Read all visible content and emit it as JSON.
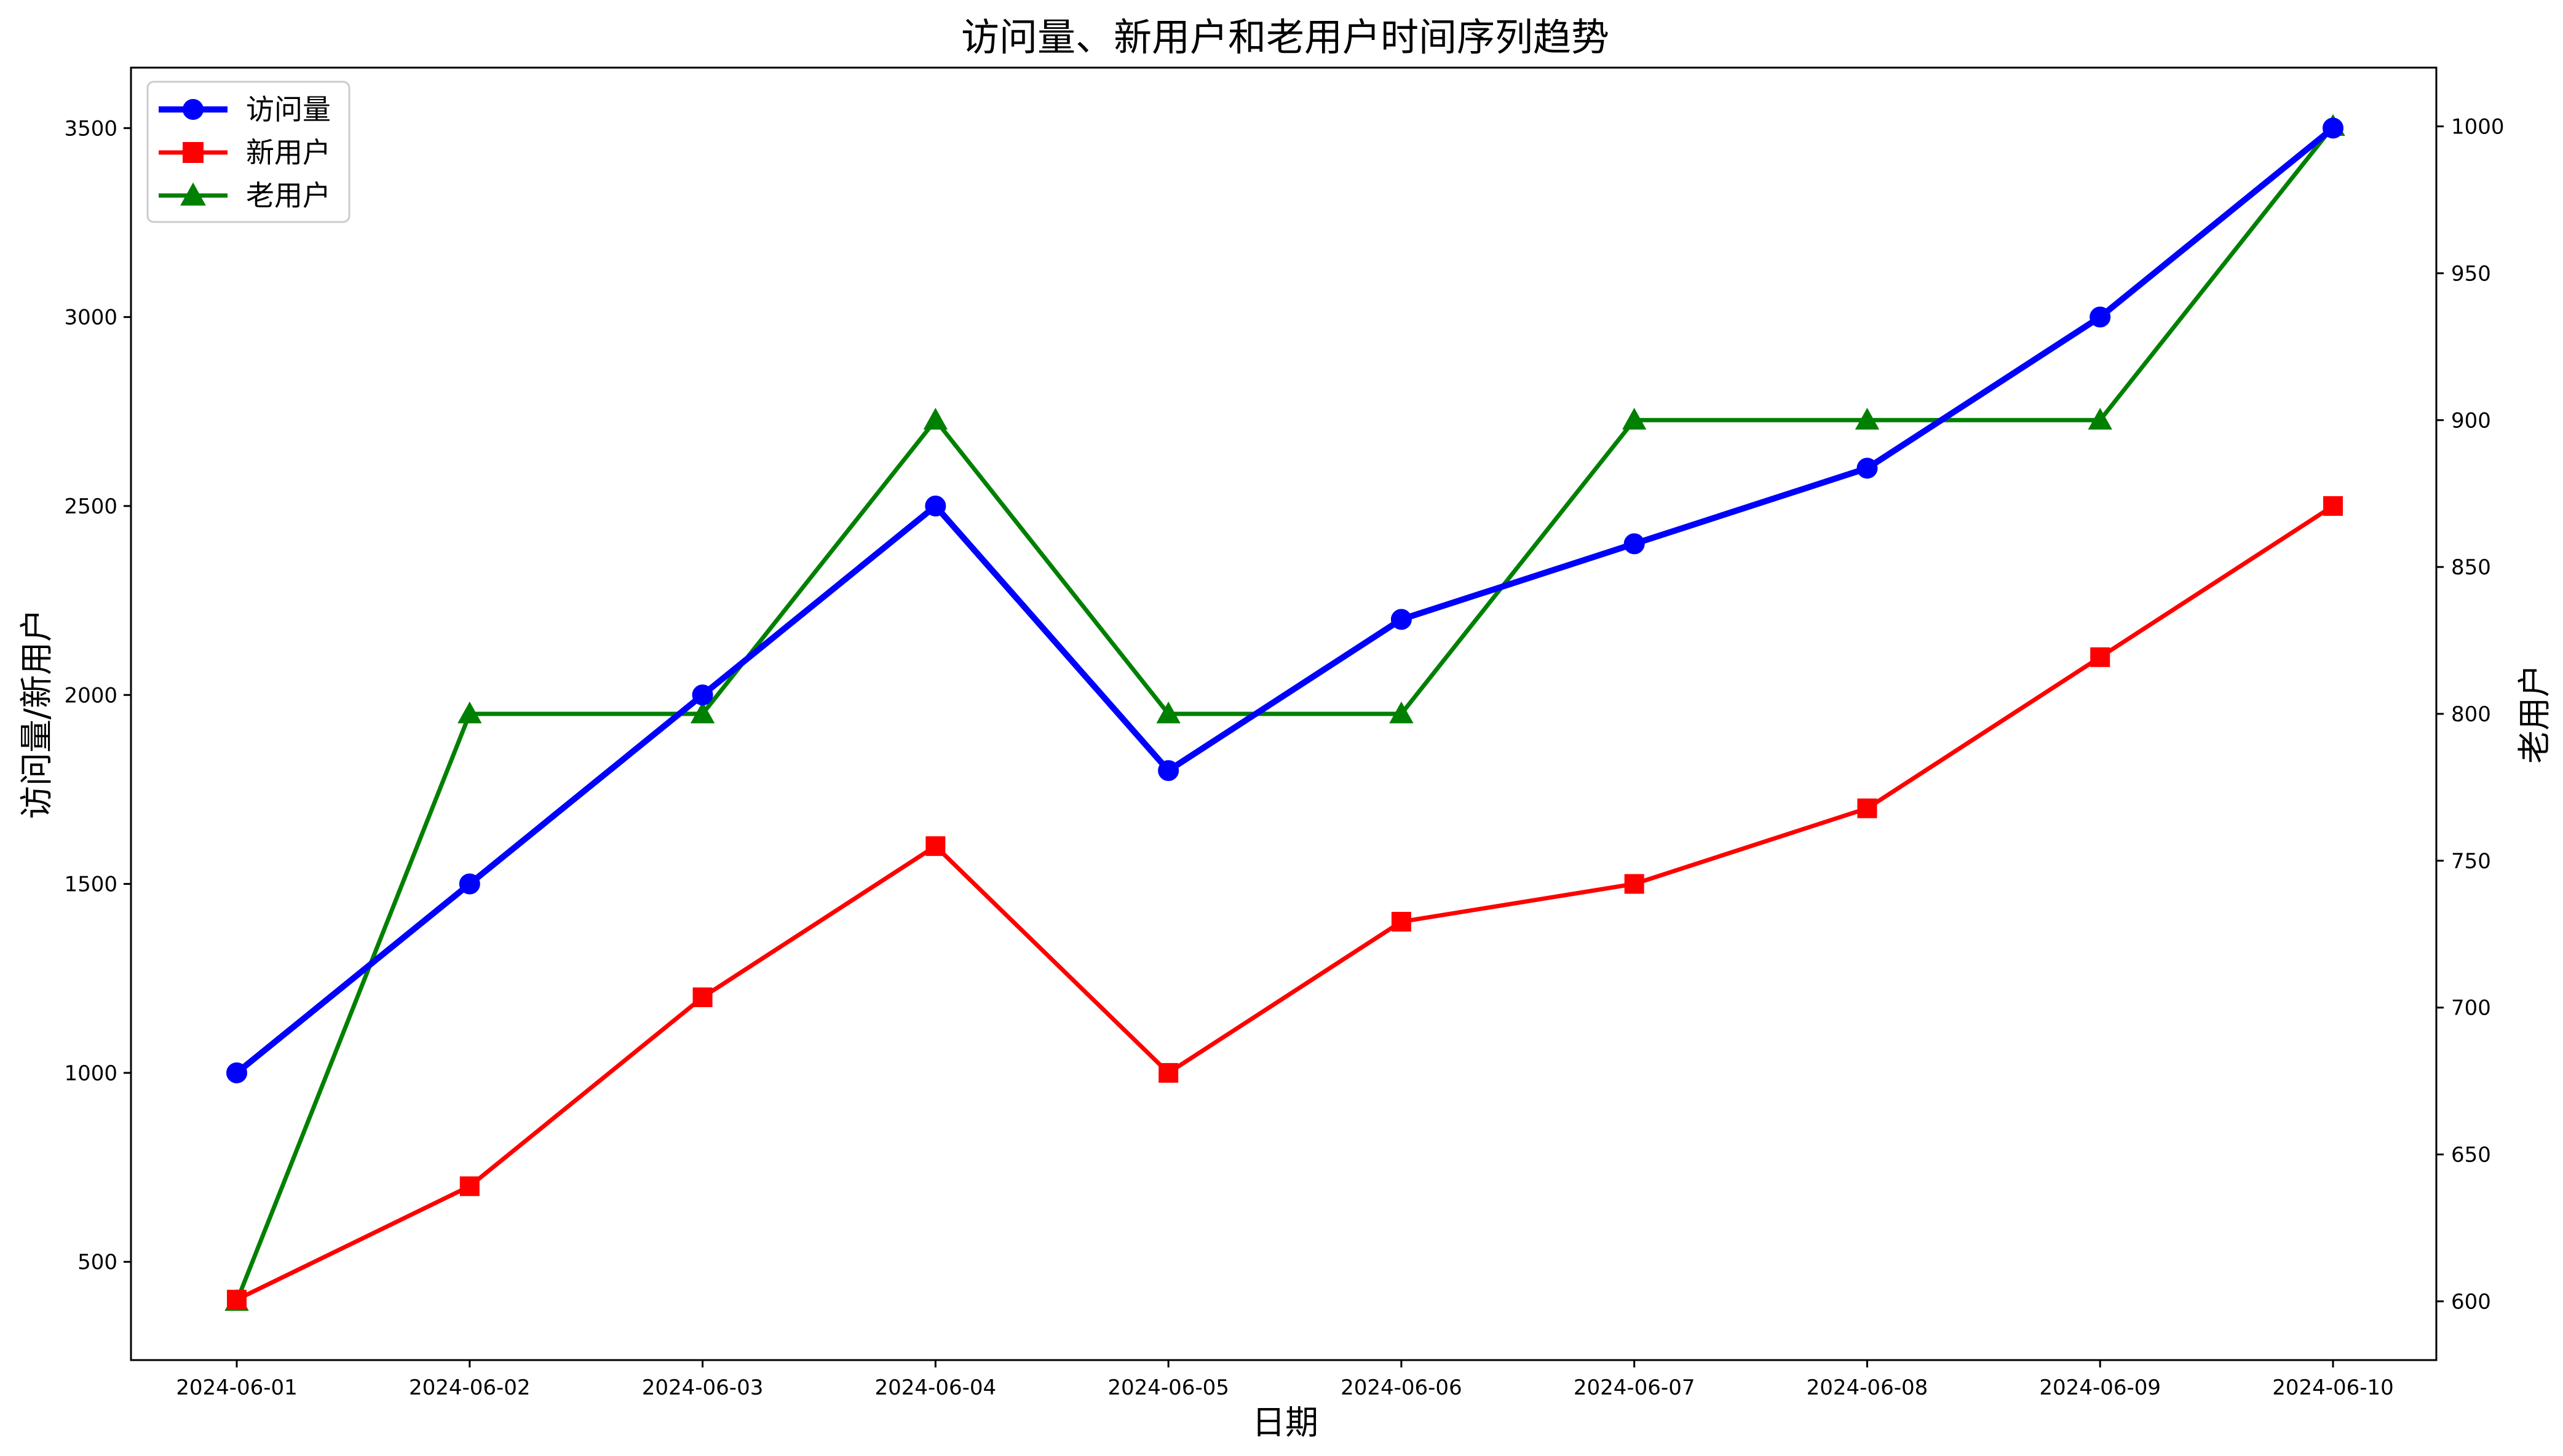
{
  "chart_data": {
    "type": "line",
    "title": "访问量、新用户和老用户时间序列趋势",
    "xlabel": "日期",
    "ylabel": "访问量/新用户",
    "ylabel_right": "老用户",
    "categories": [
      "2024-06-01",
      "2024-06-02",
      "2024-06-03",
      "2024-06-04",
      "2024-06-05",
      "2024-06-06",
      "2024-06-07",
      "2024-06-08",
      "2024-06-09",
      "2024-06-10"
    ],
    "ylim": [
      240,
      3660
    ],
    "ylim_right": [
      580,
      1020
    ],
    "yticks": [
      500,
      1000,
      1500,
      2000,
      2500,
      3000,
      3500
    ],
    "yticks_right": [
      600,
      650,
      700,
      750,
      800,
      850,
      900,
      950,
      1000
    ],
    "grid": false,
    "legend_position": "top-left",
    "series": [
      {
        "name": "访问量",
        "axis": "left",
        "color": "#0000ff",
        "marker": "circle",
        "values": [
          1000,
          1500,
          2000,
          2500,
          1800,
          2200,
          2400,
          2600,
          3000,
          3500
        ]
      },
      {
        "name": "新用户",
        "axis": "left",
        "color": "#ff0000",
        "marker": "square",
        "values": [
          400,
          700,
          1200,
          1600,
          1000,
          1400,
          1500,
          1700,
          2100,
          2500
        ]
      },
      {
        "name": "老用户",
        "axis": "right",
        "color": "#008000",
        "marker": "triangle",
        "values": [
          600,
          800,
          800,
          900,
          800,
          800,
          900,
          900,
          900,
          1000
        ]
      }
    ]
  }
}
